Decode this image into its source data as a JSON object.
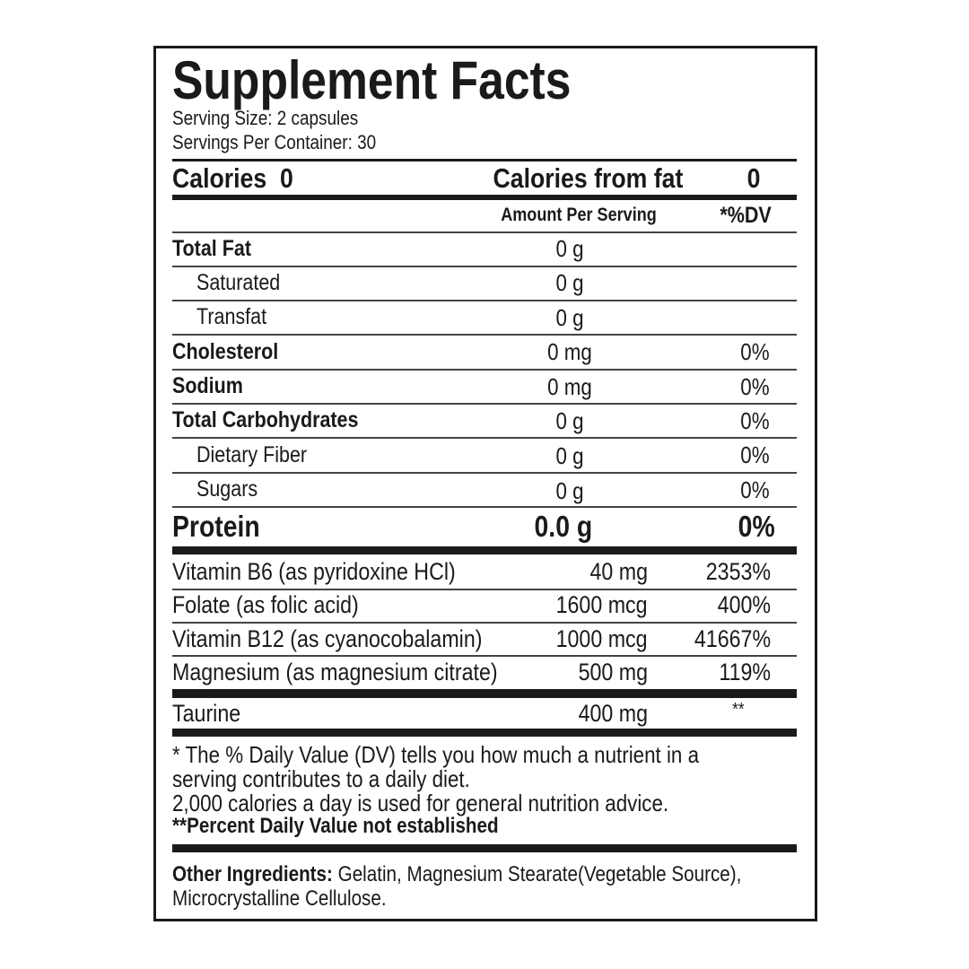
{
  "title": "Supplement Facts",
  "serving_size": "Serving Size: 2 capsules",
  "servings_per_container": "Servings Per Container: 30",
  "calories": {
    "label": "Calories",
    "value": "0",
    "from_fat_label": "Calories from fat",
    "from_fat_value": "0"
  },
  "header": {
    "amount": "Amount Per Serving",
    "dv": "*%DV"
  },
  "nutrients": [
    {
      "name": "Total Fat",
      "amount": "0 g",
      "dv": ""
    },
    {
      "name": "Saturated",
      "amount": "0 g",
      "dv": ""
    },
    {
      "name": "Transfat",
      "amount": "0 g",
      "dv": ""
    },
    {
      "name": "Cholesterol",
      "amount": "0 mg",
      "dv": "0%"
    },
    {
      "name": "Sodium",
      "amount": "0 mg",
      "dv": "0%"
    },
    {
      "name": "Total Carbohydrates",
      "amount": "0 g",
      "dv": "0%"
    },
    {
      "name": "Dietary Fiber",
      "amount": "0 g",
      "dv": "0%"
    },
    {
      "name": "Sugars",
      "amount": "0 g",
      "dv": "0%"
    }
  ],
  "protein": {
    "name": "Protein",
    "amount": "0.0 g",
    "dv": "0%"
  },
  "vitamins": [
    {
      "name": "Vitamin B6 (as pyridoxine HCl)",
      "amount": "40 mg",
      "dv": "2353%"
    },
    {
      "name": "Folate (as folic acid)",
      "amount": "1600 mcg",
      "dv": "400%"
    },
    {
      "name": "Vitamin B12 (as cyanocobalamin)",
      "amount": "1000 mcg",
      "dv": "41667%"
    },
    {
      "name": "Magnesium (as magnesium citrate)",
      "amount": "500 mg",
      "dv": "119%"
    }
  ],
  "taurine": {
    "name": "Taurine",
    "amount": "400 mg",
    "dv": "**"
  },
  "footnotes": [
    "* The % Daily Value (DV) tells you how much a nutrient in a",
    "serving contributes to a daily diet.",
    "2,000 calories a day is used for general nutrition advice.",
    "**Percent Daily Value not established"
  ],
  "other_ingredients": {
    "label": "Other Ingredients:",
    "line1": " Gelatin, Magnesium Stearate(Vegetable Source),",
    "line2": "Microcrystalline Cellulose."
  }
}
